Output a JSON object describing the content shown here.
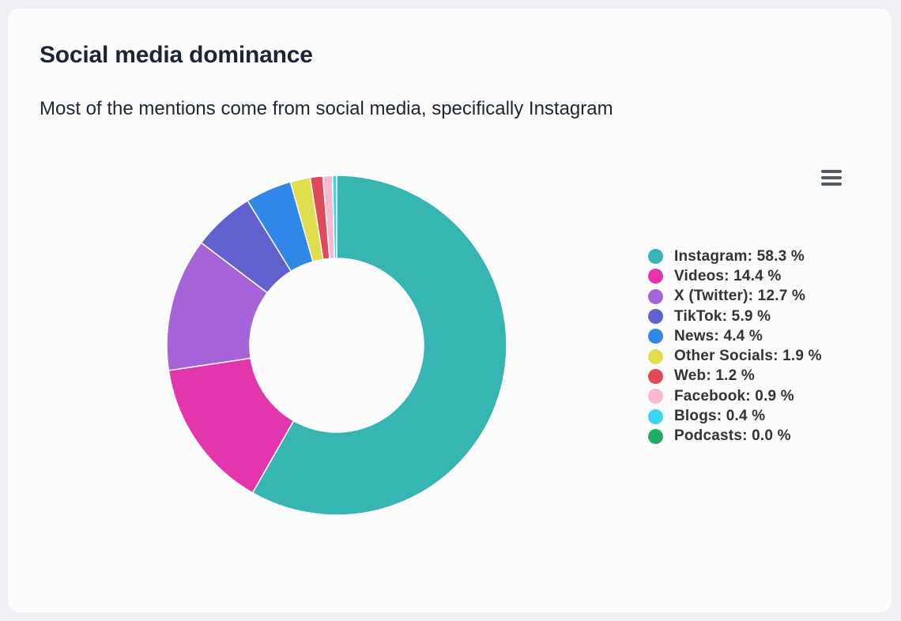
{
  "card": {
    "title": "Social media dominance",
    "subtitle": "Most of the mentions come from social media, specifically Instagram"
  },
  "menu": {
    "icon": "hamburger-menu-icon"
  },
  "chart_data": {
    "type": "pie",
    "variant": "donut",
    "title": "Social media dominance",
    "subtitle": "Most of the mentions come from social media, specifically Instagram",
    "legend_position": "right",
    "unit": "%",
    "series": [
      {
        "name": "Instagram",
        "value": 58.3,
        "label": "Instagram: 58.3 %",
        "color": "#36b5b3"
      },
      {
        "name": "Videos",
        "value": 14.4,
        "label": "Videos: 14.4 %",
        "color": "#e336ac"
      },
      {
        "name": "X (Twitter)",
        "value": 12.7,
        "label": "X (Twitter): 12.7 %",
        "color": "#a565d9"
      },
      {
        "name": "TikTok",
        "value": 5.9,
        "label": "TikTok: 5.9 %",
        "color": "#6160cf"
      },
      {
        "name": "News",
        "value": 4.4,
        "label": "News: 4.4 %",
        "color": "#2f87e8"
      },
      {
        "name": "Other Socials",
        "value": 1.9,
        "label": "Other Socials: 1.9 %",
        "color": "#e0dd4f"
      },
      {
        "name": "Web",
        "value": 1.2,
        "label": "Web: 1.2 %",
        "color": "#df4a5b"
      },
      {
        "name": "Facebook",
        "value": 0.9,
        "label": "Facebook: 0.9 %",
        "color": "#f8b8d2"
      },
      {
        "name": "Blogs",
        "value": 0.4,
        "label": "Blogs: 0.4 %",
        "color": "#3ad6f1"
      },
      {
        "name": "Podcasts",
        "value": 0.0,
        "label": "Podcasts: 0.0 %",
        "color": "#1eac66"
      }
    ]
  }
}
